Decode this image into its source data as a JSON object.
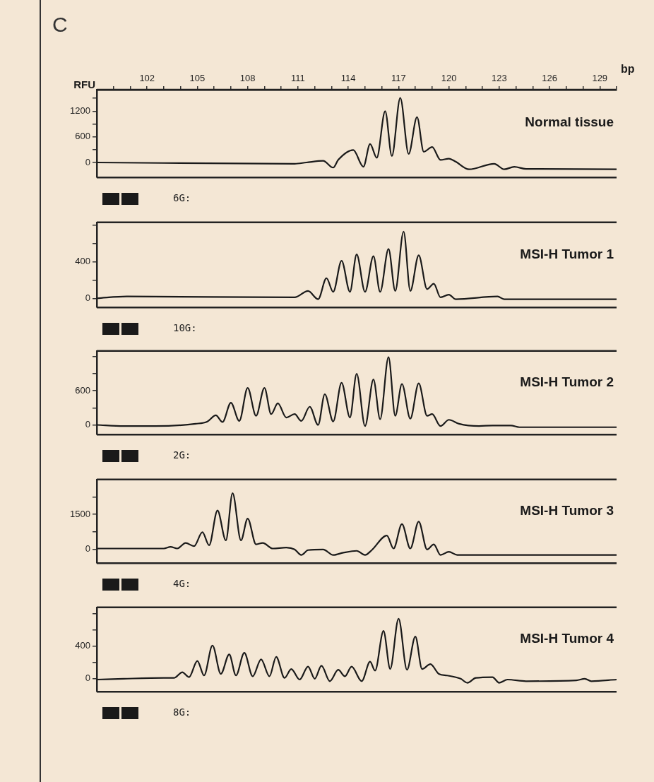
{
  "chart_data": [
    {
      "type": "line",
      "title": "C",
      "xlabel": "bp",
      "ylabel": "RFU",
      "xlim": [
        99,
        130
      ],
      "xticks": [
        {
          "value": 100,
          "label": null
        },
        {
          "value": 101,
          "label": null
        },
        102,
        {
          "value": 103,
          "label": null
        },
        {
          "value": 104,
          "label": null
        },
        105,
        {
          "value": 106,
          "label": null
        },
        {
          "value": 107,
          "label": null
        },
        108,
        {
          "value": 109,
          "label": null
        },
        {
          "value": 110,
          "label": null
        },
        111,
        {
          "value": 112,
          "label": null
        },
        {
          "value": 113,
          "label": null
        },
        114,
        {
          "value": 115,
          "label": null
        },
        {
          "value": 116,
          "label": null
        },
        117,
        {
          "value": 118,
          "label": null
        },
        {
          "value": 119,
          "label": null
        },
        120,
        {
          "value": 121,
          "label": null
        },
        {
          "value": 122,
          "label": null
        },
        123,
        {
          "value": 124,
          "label": null
        },
        {
          "value": 125,
          "label": null
        },
        126,
        {
          "value": 127,
          "label": null
        },
        {
          "value": 128,
          "label": null
        },
        129,
        {
          "value": 130,
          "label": null
        }
      ],
      "ylim": [
        -350,
        1700
      ],
      "yticks": [
        0,
        {
          "value": 300,
          "label": null
        },
        600,
        {
          "value": 900,
          "label": null
        },
        1200,
        {
          "value": 1500,
          "label": null
        }
      ],
      "series": [
        {
          "name": "Normal tissue",
          "color": "#1a1a1a",
          "x": [
            99,
            110.8,
            111.5,
            112.5,
            113.1,
            113.4,
            114.3,
            114.9,
            115.3,
            115.7,
            116.2,
            116.6,
            117.1,
            117.6,
            118.1,
            118.5,
            119.0,
            119.5,
            120.0,
            120.4,
            121.2,
            122.7,
            123.3,
            123.9,
            124.6,
            130
          ],
          "values": [
            0,
            -30,
            0,
            40,
            -120,
            60,
            290,
            -100,
            430,
            110,
            1200,
            150,
            1510,
            200,
            1060,
            250,
            360,
            60,
            90,
            20,
            -160,
            -30,
            -160,
            -100,
            -150,
            -160
          ]
        }
      ],
      "annotations": [
        "6G:"
      ]
    },
    {
      "type": "line",
      "xlim": [
        99,
        130
      ],
      "tick_labels": "y",
      "ylim": [
        -100,
        830
      ],
      "yticks": [
        0,
        {
          "value": 200,
          "label": null
        },
        400,
        {
          "value": 600,
          "label": null
        },
        {
          "value": 800,
          "label": null
        }
      ],
      "series": [
        {
          "name": "MSI-H Tumor 1",
          "color": "#1a1a1a",
          "x": [
            99,
            100.8,
            110.8,
            111.6,
            112.2,
            112.7,
            113.1,
            113.6,
            114.1,
            114.5,
            115.0,
            115.5,
            115.9,
            116.4,
            116.8,
            117.3,
            117.7,
            118.2,
            118.7,
            119.1,
            119.5,
            120.0,
            120.4,
            122.9,
            123.3,
            130
          ],
          "values": [
            0,
            20,
            10,
            80,
            -10,
            220,
            70,
            410,
            70,
            480,
            70,
            460,
            70,
            540,
            80,
            730,
            80,
            470,
            100,
            160,
            10,
            40,
            -10,
            20,
            -10,
            -10
          ]
        }
      ],
      "annotations": [
        "10G:"
      ]
    },
    {
      "type": "line",
      "xlim": [
        99,
        130
      ],
      "tick_labels": "y",
      "ylim": [
        -170,
        1300
      ],
      "yticks": [
        0,
        {
          "value": 300,
          "label": null
        },
        600,
        {
          "value": 900,
          "label": null
        },
        {
          "value": 1200,
          "label": null
        }
      ],
      "series": [
        {
          "name": "MSI-H Tumor 2",
          "color": "#1a1a1a",
          "x": [
            99,
            100.6,
            102.5,
            104.9,
            105.6,
            106.1,
            106.5,
            107.0,
            107.5,
            108.0,
            108.5,
            109.0,
            109.4,
            109.8,
            110.3,
            110.8,
            111.2,
            111.7,
            112.2,
            112.6,
            113.1,
            113.6,
            114.1,
            114.5,
            115.0,
            115.5,
            115.9,
            116.4,
            116.8,
            117.2,
            117.7,
            118.2,
            118.7,
            119.0,
            119.5,
            120.0,
            120.6,
            121.8,
            122.6,
            123.7,
            124.2,
            130
          ],
          "values": [
            0,
            -20,
            -20,
            20,
            60,
            170,
            50,
            390,
            70,
            650,
            160,
            650,
            190,
            380,
            130,
            190,
            70,
            320,
            0,
            540,
            60,
            740,
            130,
            900,
            -20,
            800,
            100,
            1190,
            160,
            720,
            110,
            730,
            160,
            190,
            -20,
            90,
            20,
            -20,
            -10,
            -10,
            -40,
            -40
          ]
        }
      ],
      "annotations": [
        "2G:"
      ]
    },
    {
      "type": "line",
      "xlim": [
        99,
        130
      ],
      "tick_labels": "y",
      "ylim": [
        -600,
        3000
      ],
      "yticks": [
        0,
        {
          "value": 750,
          "label": null
        },
        1500,
        {
          "value": 2250,
          "label": null
        }
      ],
      "series": [
        {
          "name": "MSI-H Tumor 3",
          "color": "#1a1a1a",
          "x": [
            99,
            103.0,
            103.4,
            103.8,
            104.3,
            104.8,
            105.3,
            105.7,
            106.2,
            106.7,
            107.1,
            107.6,
            108.0,
            108.5,
            108.9,
            109.5,
            110.3,
            110.8,
            111.2,
            111.6,
            112.5,
            113.1,
            113.7,
            114.5,
            115.0,
            115.4,
            116.3,
            116.7,
            117.2,
            117.7,
            118.2,
            118.7,
            119.1,
            119.5,
            120.0,
            120.5,
            130
          ],
          "values": [
            30,
            30,
            100,
            30,
            270,
            130,
            730,
            170,
            1670,
            380,
            2410,
            380,
            1320,
            210,
            270,
            30,
            70,
            -10,
            -250,
            -40,
            -10,
            -250,
            -150,
            -70,
            -250,
            -40,
            590,
            30,
            1080,
            30,
            1190,
            -10,
            210,
            -250,
            -110,
            -250,
            -250
          ]
        }
      ],
      "annotations": [
        "4G:"
      ]
    },
    {
      "type": "line",
      "xlim": [
        99,
        130
      ],
      "tick_labels": "y",
      "ylim": [
        -160,
        880
      ],
      "yticks": [
        0,
        {
          "value": 200,
          "label": null
        },
        400,
        {
          "value": 600,
          "label": null
        },
        {
          "value": 800,
          "label": null
        }
      ],
      "series": [
        {
          "name": "MSI-H Tumor 4",
          "color": "#1a1a1a",
          "x": [
            99,
            100.6,
            103.0,
            103.6,
            104.1,
            104.5,
            105.0,
            105.4,
            105.9,
            106.4,
            106.9,
            107.3,
            107.8,
            108.3,
            108.8,
            109.3,
            109.7,
            110.2,
            110.6,
            111.1,
            111.6,
            112.0,
            112.4,
            112.9,
            113.4,
            113.8,
            114.2,
            114.8,
            115.3,
            115.6,
            116.1,
            116.5,
            117.0,
            117.5,
            118.0,
            118.4,
            118.9,
            119.4,
            119.9,
            120.7,
            121.1,
            121.6,
            122.6,
            123.0,
            123.5,
            124.6,
            127.6,
            128.1,
            128.5,
            130
          ],
          "values": [
            -10,
            0,
            10,
            10,
            80,
            20,
            220,
            40,
            410,
            60,
            300,
            40,
            320,
            30,
            240,
            30,
            270,
            10,
            120,
            -10,
            150,
            0,
            160,
            -30,
            110,
            30,
            150,
            -30,
            210,
            100,
            590,
            120,
            740,
            110,
            520,
            120,
            180,
            60,
            40,
            0,
            -50,
            10,
            20,
            -50,
            -10,
            -30,
            -20,
            0,
            -30,
            -10
          ]
        }
      ],
      "annotations": [
        "8G:"
      ]
    }
  ]
}
